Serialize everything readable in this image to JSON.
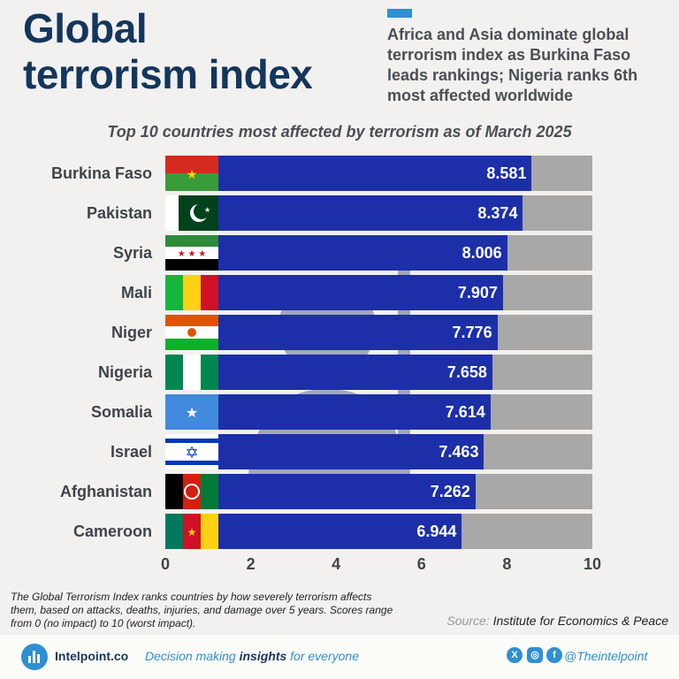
{
  "header": {
    "title_line1": "Global",
    "title_line2": "terrorism index",
    "subtitle": "Africa and Asia dominate global terrorism index as Burkina Faso leads rankings; Nigeria ranks 6th most affected worldwide"
  },
  "chart_data": {
    "type": "bar",
    "orientation": "horizontal",
    "title": "Top 10 countries most affected by terrorism as of March 2025",
    "categories": [
      "Burkina Faso",
      "Pakistan",
      "Syria",
      "Mali",
      "Niger",
      "Nigeria",
      "Somalia",
      "Israel",
      "Afghanistan",
      "Cameroon"
    ],
    "values": [
      8.581,
      8.374,
      8.006,
      7.907,
      7.776,
      7.658,
      7.614,
      7.463,
      7.262,
      6.944
    ],
    "value_labels": [
      "8.581",
      "8.374",
      "8.006",
      "7.907",
      "7.776",
      "7.658",
      "7.614",
      "7.463",
      "7.262",
      "6.944"
    ],
    "xlim": [
      0,
      10
    ],
    "xticks": [
      "0",
      "2",
      "4",
      "6",
      "8",
      "10"
    ],
    "colors": {
      "bar": "#1c2fa8",
      "track": "#a8a8a8"
    },
    "flags": [
      "burkina-faso-flag",
      "pakistan-flag",
      "syria-flag",
      "mali-flag",
      "niger-flag",
      "nigeria-flag",
      "somalia-flag",
      "israel-flag",
      "afghanistan-flag",
      "cameroon-flag"
    ]
  },
  "footnote": "The Global Terrorism Index ranks countries by how severely terrorism affects them, based on attacks, deaths, injuries, and damage over 5 years. Scores range from 0 (no impact) to 10 (worst impact).",
  "source": {
    "label": "Source:",
    "name": "Institute for Economics & Peace"
  },
  "footer": {
    "brand": "Intelpoint.co",
    "tagline_pre": "Decision making ",
    "tagline_bold": "insights",
    "tagline_post": " for everyone",
    "handle": "@Theintelpoint",
    "social_icons": [
      "x-icon",
      "instagram-icon",
      "facebook-icon"
    ]
  }
}
